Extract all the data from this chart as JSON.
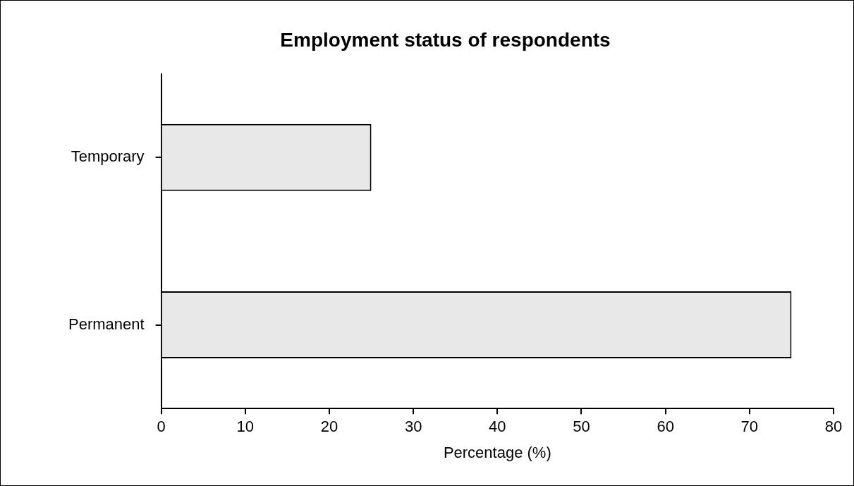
{
  "chart_data": {
    "type": "bar",
    "orientation": "horizontal",
    "title": "Employment status of respondents",
    "xlabel": "Percentage (%)",
    "categories": [
      "Temporary",
      "Permanent"
    ],
    "values": [
      25,
      75
    ],
    "color": "#e8e8e8",
    "xlim": [
      0,
      80
    ],
    "xticks": [
      0,
      10,
      20,
      30,
      40,
      50,
      60,
      70,
      80
    ],
    "grid": false,
    "legend": false
  }
}
